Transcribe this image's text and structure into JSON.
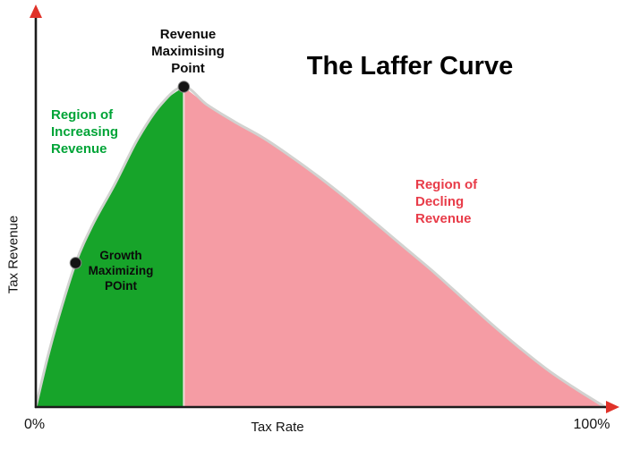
{
  "title": {
    "text": "The Laffer Curve"
  },
  "axes": {
    "y_label": "Tax Revenue",
    "x_label": "Tax Rate",
    "x_tick_left": "0%",
    "x_tick_right": "100%"
  },
  "labels": {
    "revenue_max": {
      "lines": [
        "Revenue",
        "Maximising",
        "Point"
      ]
    },
    "region_increasing": {
      "lines": [
        "Region of",
        "Increasing",
        "Revenue"
      ],
      "color": "#00a437"
    },
    "region_declining": {
      "lines": [
        "Region of",
        "Decling",
        "Revenue"
      ],
      "color": "#e83c49"
    },
    "growth_max": {
      "lines": [
        "Growth",
        "Maximizing",
        "POint"
      ]
    }
  },
  "colors": {
    "region_increasing_fill": "#17a42a",
    "region_declining_fill": "#f59ca4",
    "curve_outline": "#d2d2d0",
    "divider": "#ecdcda",
    "axis": "#1c1c1c",
    "arrow": "#e03229",
    "point": "#141414",
    "point_ring": "#888888",
    "background": "#ffffff"
  },
  "chart_data": {
    "type": "area",
    "title": "The Laffer Curve",
    "xlabel": "Tax Rate",
    "ylabel": "Tax Revenue",
    "x_tick_labels": [
      "0%",
      "100%"
    ],
    "xlim": [
      0,
      100
    ],
    "ylim": [
      0,
      110
    ],
    "grid": false,
    "legend": false,
    "x": [
      0,
      2,
      4,
      7,
      10,
      14,
      18,
      22,
      26,
      30,
      35,
      40,
      45,
      50,
      55,
      60,
      65,
      70,
      75,
      80,
      85,
      90,
      95,
      100
    ],
    "y": [
      0,
      15,
      28,
      45,
      57,
      70,
      84,
      94.5,
      100,
      94.5,
      89,
      84,
      78,
      71.5,
      64.5,
      57,
      49.5,
      42,
      34,
      26,
      18.5,
      11.5,
      5.5,
      0
    ],
    "peak": {
      "x": 26,
      "y": 100,
      "label": "Revenue Maximising Point"
    },
    "growth_point": {
      "x": 7,
      "y": 45,
      "label": "Growth Maximizing POint"
    },
    "regions": [
      {
        "name": "Region of Increasing Revenue",
        "from": 0,
        "to": 26,
        "fill": "#17a42a"
      },
      {
        "name": "Region of Decling Revenue",
        "from": 26,
        "to": 100,
        "fill": "#f59ca4"
      }
    ]
  }
}
